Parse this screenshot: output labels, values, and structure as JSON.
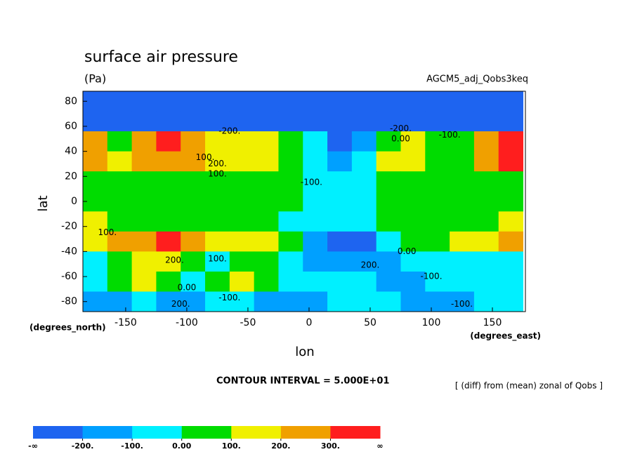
{
  "chart_data": {
    "type": "contour",
    "title": "surface air pressure",
    "subtitle": "(Pa)",
    "experiment": "AGCM5_adj_Qobs3keq",
    "xlabel": "lon",
    "ylabel": "lat",
    "x_unit": "(degrees_east)",
    "y_unit": "(degrees_north)",
    "contour_interval": "CONTOUR INTERVAL = 5.000E+01",
    "note": "[ (diff) from (mean) zonal of Qobs ]",
    "xlim": [
      -185,
      177
    ],
    "ylim": [
      -88,
      88
    ],
    "xticks": [
      -150,
      -100,
      -50,
      0,
      50,
      100,
      150
    ],
    "yticks": [
      -80,
      -60,
      -40,
      -20,
      0,
      20,
      40,
      60,
      80
    ],
    "x": [
      -175,
      -155,
      -135,
      -115,
      -95,
      -75,
      -55,
      -35,
      -15,
      5,
      25,
      45,
      65,
      85,
      105,
      125,
      145,
      165
    ],
    "y": [
      80,
      64,
      48,
      32,
      16,
      0,
      -16,
      -32,
      -48,
      -64,
      -80
    ],
    "z": [
      [
        -300,
        -300,
        -300,
        -300,
        -300,
        -300,
        -300,
        -300,
        -300,
        -300,
        -300,
        -300,
        -300,
        -300,
        -300,
        -300,
        -300,
        -300
      ],
      [
        -250,
        -250,
        -250,
        -250,
        -250,
        -250,
        -250,
        -250,
        -250,
        -250,
        -250,
        -250,
        -250,
        -250,
        -250,
        -250,
        -250,
        -250
      ],
      [
        250,
        50,
        200,
        350,
        200,
        150,
        150,
        100,
        50,
        -100,
        -250,
        -150,
        50,
        150,
        50,
        50,
        200,
        350
      ],
      [
        200,
        150,
        200,
        250,
        200,
        150,
        150,
        100,
        50,
        -50,
        -150,
        -100,
        100,
        150,
        50,
        50,
        200,
        300
      ],
      [
        50,
        50,
        50,
        50,
        50,
        50,
        50,
        50,
        50,
        -50,
        -50,
        -50,
        50,
        50,
        50,
        50,
        50,
        50
      ],
      [
        50,
        50,
        50,
        50,
        50,
        50,
        50,
        50,
        30,
        -50,
        -50,
        -50,
        50,
        50,
        50,
        50,
        50,
        50
      ],
      [
        100,
        50,
        50,
        50,
        50,
        50,
        50,
        50,
        -50,
        -50,
        -50,
        -50,
        50,
        50,
        50,
        50,
        50,
        100
      ],
      [
        150,
        200,
        250,
        350,
        200,
        150,
        100,
        100,
        50,
        -150,
        -250,
        -250,
        -100,
        50,
        50,
        100,
        150,
        200
      ],
      [
        -50,
        50,
        150,
        100,
        50,
        -50,
        50,
        50,
        -50,
        -150,
        -200,
        -150,
        -150,
        -100,
        -50,
        -50,
        -50,
        -50
      ],
      [
        -50,
        50,
        150,
        50,
        -100,
        50,
        150,
        50,
        -50,
        -50,
        -100,
        -100,
        -150,
        -150,
        -100,
        -50,
        -100,
        -50
      ],
      [
        -200,
        -150,
        -100,
        -150,
        -150,
        -100,
        -100,
        -150,
        -150,
        -150,
        -100,
        -100,
        -100,
        -150,
        -150,
        -150,
        -100,
        -100
      ]
    ],
    "levels": [
      {
        "value": -200,
        "label": "-200."
      },
      {
        "value": -100,
        "label": "-100."
      },
      {
        "value": 0,
        "label": "0.00"
      },
      {
        "value": 100,
        "label": "100."
      },
      {
        "value": 200,
        "label": "200."
      },
      {
        "value": 300,
        "label": "300."
      }
    ],
    "low_label": "-∞",
    "high_label": "∞",
    "colors": [
      "#1e64f0",
      "#00a0ff",
      "#00f0ff",
      "#00dc00",
      "#f0f000",
      "#f0a000",
      "#ff1e1e"
    ],
    "contour_labels": [
      {
        "text": "-200.",
        "lon": -65,
        "lat": 56
      },
      {
        "text": "100.",
        "lon": -85,
        "lat": 35
      },
      {
        "text": "200.",
        "lon": -75,
        "lat": 30
      },
      {
        "text": "100.",
        "lon": -75,
        "lat": 22
      },
      {
        "text": "-100.",
        "lon": 2,
        "lat": 15
      },
      {
        "text": "-200.",
        "lon": 75,
        "lat": 58
      },
      {
        "text": "0.00",
        "lon": 75,
        "lat": 50
      },
      {
        "text": "-100.",
        "lon": 115,
        "lat": 53
      },
      {
        "text": "100.",
        "lon": -165,
        "lat": -25
      },
      {
        "text": "200.",
        "lon": -110,
        "lat": -47
      },
      {
        "text": "100.",
        "lon": -75,
        "lat": -46
      },
      {
        "text": "0.00",
        "lon": 80,
        "lat": -40
      },
      {
        "text": "200.",
        "lon": 50,
        "lat": -51
      },
      {
        "text": "-100.",
        "lon": 100,
        "lat": -60
      },
      {
        "text": "0.00",
        "lon": -100,
        "lat": -69
      },
      {
        "text": "-100.",
        "lon": -65,
        "lat": -77
      },
      {
        "text": "200.",
        "lon": -105,
        "lat": -82
      },
      {
        "text": "-100.",
        "lon": 125,
        "lat": -82
      }
    ]
  }
}
